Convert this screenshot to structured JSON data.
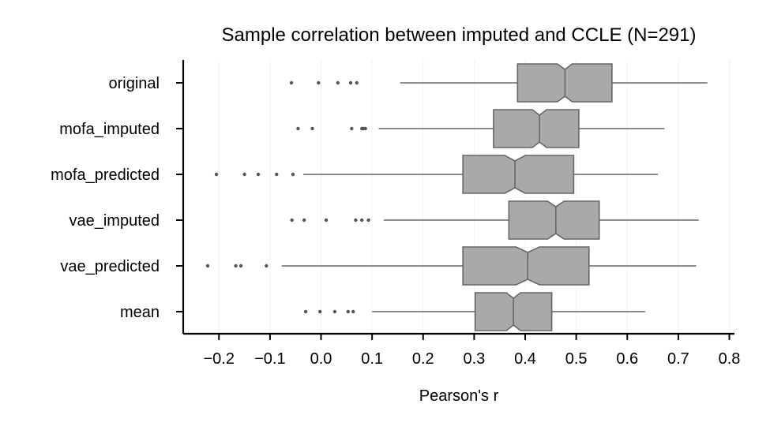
{
  "chart_data": {
    "type": "boxplot",
    "orientation": "horizontal",
    "notched": true,
    "title": "Sample correlation between imputed and CCLE (N=291)",
    "xlabel": "Pearson's r",
    "ylabel": "",
    "xlim": [
      -0.27,
      0.81
    ],
    "xticks": [
      -0.2,
      -0.1,
      0.0,
      0.1,
      0.2,
      0.3,
      0.4,
      0.5,
      0.6,
      0.7,
      0.8
    ],
    "xtick_labels": [
      "−0.2",
      "−0.1",
      "0.0",
      "0.1",
      "0.2",
      "0.3",
      "0.4",
      "0.5",
      "0.6",
      "0.7",
      "0.8"
    ],
    "grid": "vertical-light",
    "colors": {
      "box_fill": "#a9a9a9",
      "box_edge": "#666666",
      "whisker": "#666666",
      "flier": "#555555",
      "axis": "#000000",
      "grid": "#f0f0f0"
    },
    "categories": [
      "original",
      "mofa_imputed",
      "mofa_predicted",
      "vae_imputed",
      "vae_predicted",
      "mean"
    ],
    "boxes": [
      {
        "label": "original",
        "whislo": 0.155,
        "q1": 0.385,
        "median": 0.478,
        "q3": 0.57,
        "whishi": 0.757,
        "notch": [
          0.463,
          0.492
        ],
        "fliers": [
          -0.058,
          -0.005,
          0.033,
          0.058,
          0.07
        ]
      },
      {
        "label": "mofa_imputed",
        "whislo": 0.113,
        "q1": 0.338,
        "median": 0.428,
        "q3": 0.505,
        "whishi": 0.673,
        "notch": [
          0.414,
          0.442
        ],
        "fliers": [
          -0.045,
          -0.017,
          0.06,
          0.08,
          0.083,
          0.087
        ]
      },
      {
        "label": "mofa_predicted",
        "whislo": -0.035,
        "q1": 0.278,
        "median": 0.38,
        "q3": 0.495,
        "whishi": 0.66,
        "notch": [
          0.36,
          0.4
        ],
        "fliers": [
          -0.205,
          -0.15,
          -0.123,
          -0.087,
          -0.055
        ]
      },
      {
        "label": "vae_imputed",
        "whislo": 0.123,
        "q1": 0.368,
        "median": 0.46,
        "q3": 0.545,
        "whishi": 0.74,
        "notch": [
          0.444,
          0.476
        ],
        "fliers": [
          -0.057,
          -0.033,
          0.01,
          0.068,
          0.08,
          0.093
        ]
      },
      {
        "label": "vae_predicted",
        "whislo": -0.077,
        "q1": 0.278,
        "median": 0.405,
        "q3": 0.525,
        "whishi": 0.735,
        "notch": [
          0.382,
          0.428
        ],
        "fliers": [
          -0.222,
          -0.167,
          -0.157,
          -0.107
        ]
      },
      {
        "label": "mean",
        "whislo": 0.1,
        "q1": 0.302,
        "median": 0.377,
        "q3": 0.452,
        "whishi": 0.635,
        "notch": [
          0.363,
          0.391
        ],
        "fliers": [
          -0.03,
          -0.002,
          0.027,
          0.053,
          0.063
        ]
      }
    ]
  }
}
